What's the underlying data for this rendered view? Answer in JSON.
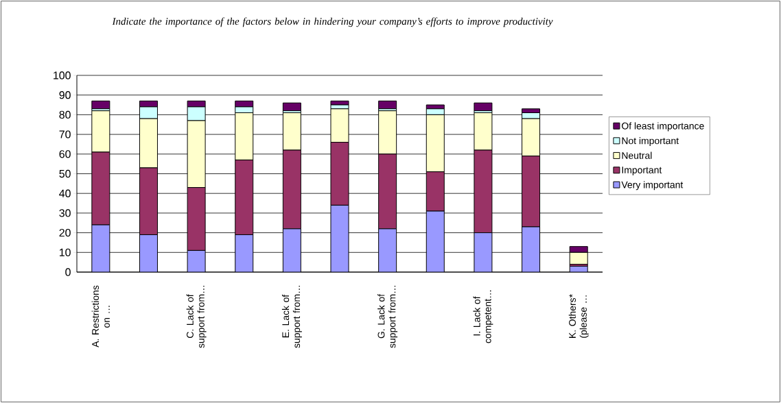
{
  "chart_data": {
    "type": "bar",
    "stacked": true,
    "title": "Indicate the importance of the factors below in hindering your company’s efforts to improve productivity",
    "categories": [
      "A. Restrictions on …",
      null,
      "C. Lack of support from…",
      null,
      "E. Lack of support from…",
      null,
      "G. Lack of support from…",
      null,
      "I. Lack of competent…",
      null,
      "K. Others* (please …"
    ],
    "series": [
      {
        "name": "Very important",
        "color": "#9999ff",
        "values": [
          24,
          19,
          11,
          19,
          22,
          34,
          22,
          31,
          20,
          23,
          3
        ]
      },
      {
        "name": "Important",
        "color": "#993366",
        "values": [
          37,
          34,
          32,
          38,
          40,
          32,
          38,
          20,
          42,
          36,
          1
        ]
      },
      {
        "name": "Neutral",
        "color": "#ffffcc",
        "values": [
          21,
          25,
          34,
          24,
          19,
          17,
          22,
          29,
          19,
          19,
          6
        ]
      },
      {
        "name": "Not important",
        "color": "#ccffff",
        "values": [
          1,
          6,
          7,
          3,
          1,
          2,
          1,
          3,
          1,
          3,
          0
        ]
      },
      {
        "name": "Of least importance",
        "color": "#660066",
        "values": [
          4,
          3,
          3,
          3,
          4,
          2,
          4,
          2,
          4,
          2,
          3
        ]
      }
    ],
    "ylim": [
      0,
      100
    ],
    "yticks": [
      0,
      10,
      20,
      30,
      40,
      50,
      60,
      70,
      80,
      90,
      100
    ],
    "grid": "y",
    "legend": "right"
  }
}
